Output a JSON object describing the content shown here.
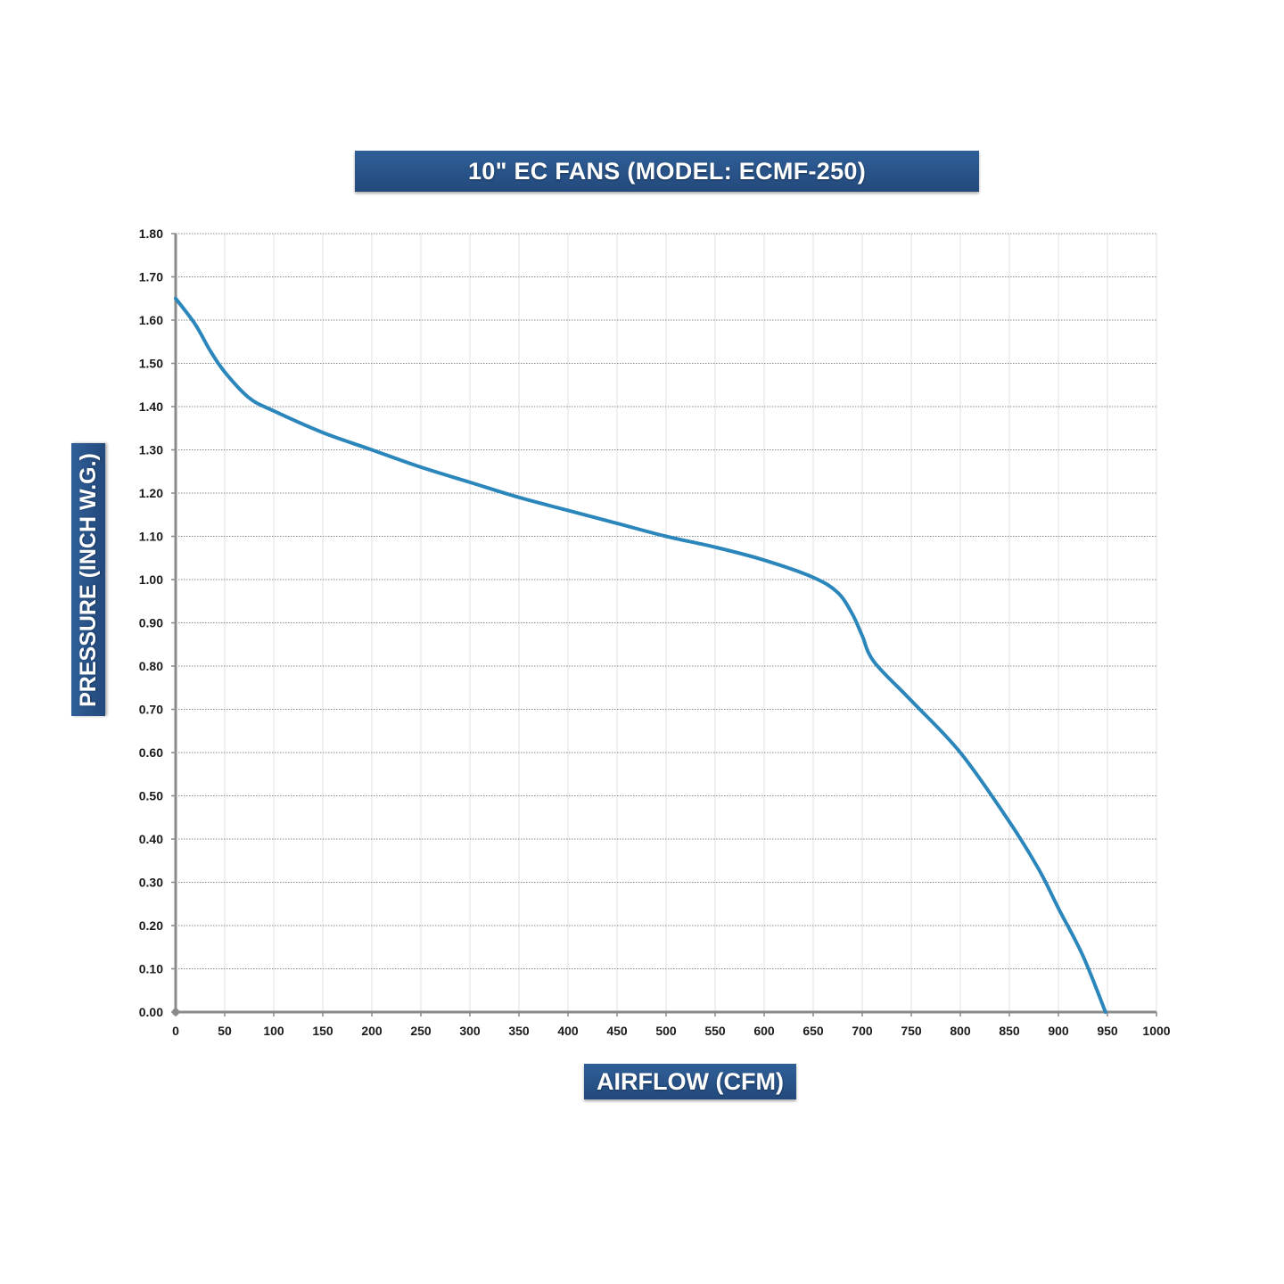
{
  "chart_data": {
    "type": "line",
    "title": "10\" EC FANS (MODEL: ECMF-250)",
    "xlabel": "AIRFLOW (CFM)",
    "ylabel": "PRESSURE (INCH W.G.)",
    "xlim": [
      0,
      1000
    ],
    "ylim": [
      0,
      1.8
    ],
    "x_ticks": [
      "0",
      "50",
      "100",
      "150",
      "200",
      "250",
      "300",
      "350",
      "400",
      "450",
      "500",
      "550",
      "600",
      "650",
      "700",
      "750",
      "800",
      "850",
      "900",
      "950",
      "1000"
    ],
    "y_ticks": [
      "0.00",
      "0.10",
      "0.20",
      "0.30",
      "0.40",
      "0.50",
      "0.60",
      "0.70",
      "0.80",
      "0.90",
      "1.00",
      "1.10",
      "1.20",
      "1.30",
      "1.40",
      "1.50",
      "1.60",
      "1.70",
      "1.80"
    ],
    "grid": true,
    "line_color": "#2a86bb",
    "series": [
      {
        "points": [
          [
            0,
            1.65
          ],
          [
            20,
            1.59
          ],
          [
            35,
            1.53
          ],
          [
            50,
            1.48
          ],
          [
            75,
            1.42
          ],
          [
            100,
            1.39
          ],
          [
            150,
            1.34
          ],
          [
            200,
            1.3
          ],
          [
            250,
            1.26
          ],
          [
            300,
            1.225
          ],
          [
            350,
            1.19
          ],
          [
            400,
            1.16
          ],
          [
            450,
            1.13
          ],
          [
            500,
            1.1
          ],
          [
            550,
            1.075
          ],
          [
            600,
            1.045
          ],
          [
            650,
            1.005
          ],
          [
            675,
            0.97
          ],
          [
            690,
            0.92
          ],
          [
            700,
            0.87
          ],
          [
            712,
            0.81
          ],
          [
            750,
            0.72
          ],
          [
            800,
            0.6
          ],
          [
            850,
            0.44
          ],
          [
            880,
            0.33
          ],
          [
            900,
            0.24
          ],
          [
            925,
            0.13
          ],
          [
            948,
            0.0
          ]
        ]
      }
    ]
  }
}
